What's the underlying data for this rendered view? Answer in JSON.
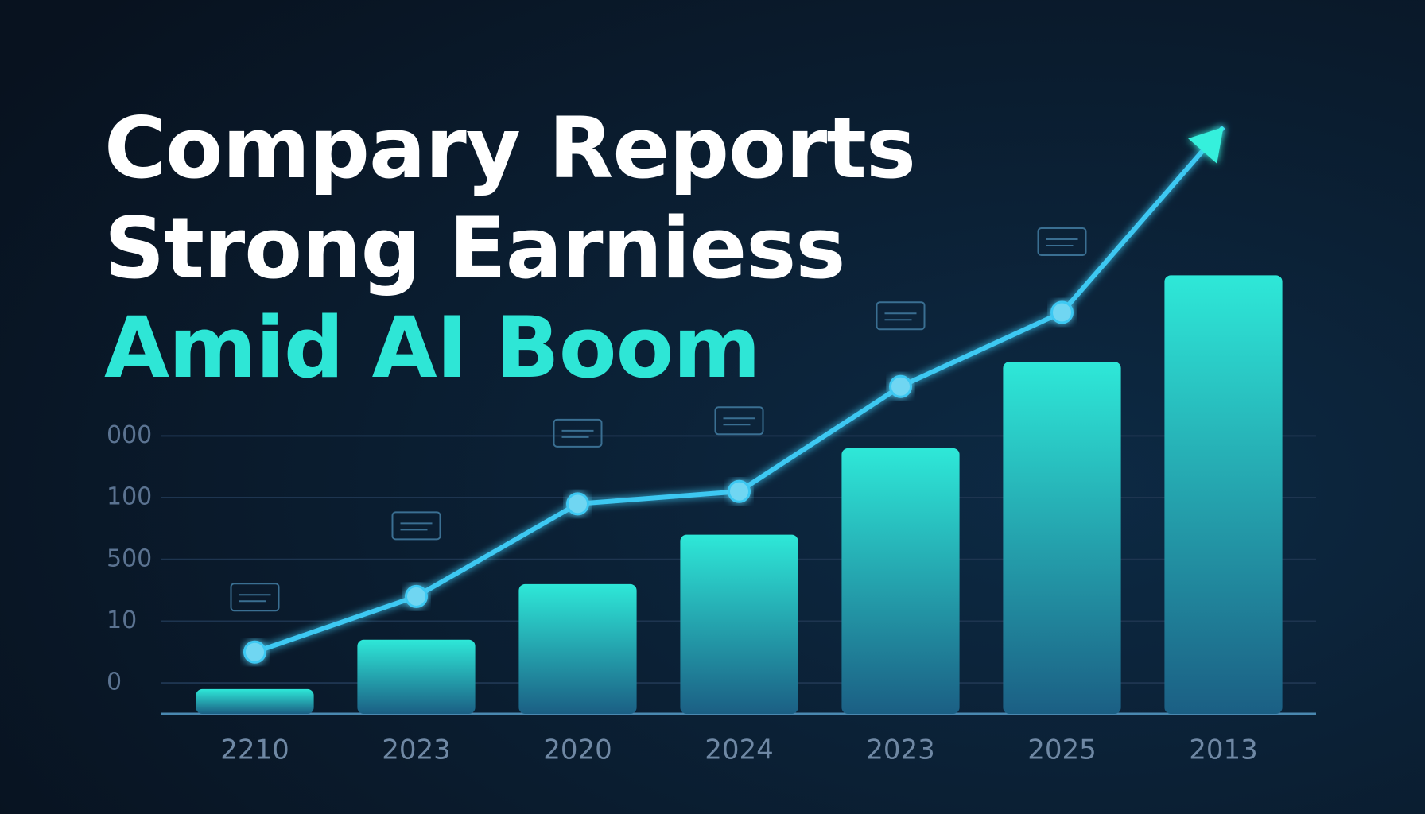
{
  "chart_data": {
    "type": "bar",
    "title": [
      "Compary Reports",
      "Strong Earniess",
      "Amid AI Boom"
    ],
    "title_colors": [
      "#ffffff",
      "#ffffff",
      "#2ee6d6"
    ],
    "categories": [
      "2210",
      "2023",
      "2020",
      "2024",
      "2023",
      "2025",
      "2013"
    ],
    "values": [
      -0.1,
      0.7,
      1.6,
      2.4,
      3.8,
      5.2,
      6.6
    ],
    "color": [
      "#2ee8d8",
      "#1b5f84"
    ],
    "line": {
      "values": [
        0.5,
        1.4,
        2.9,
        3.1,
        4.8,
        6.0,
        9.0
      ],
      "color": "#3cc8f2"
    },
    "ylim": [
      -0.5,
      9.5
    ],
    "yticks": [
      {
        "value": 0,
        "label": "0"
      },
      {
        "value": 1,
        "label": "10"
      },
      {
        "value": 2,
        "label": "500"
      },
      {
        "value": 3,
        "label": "100"
      },
      {
        "value": 4,
        "label": "000"
      }
    ],
    "grid": true
  }
}
